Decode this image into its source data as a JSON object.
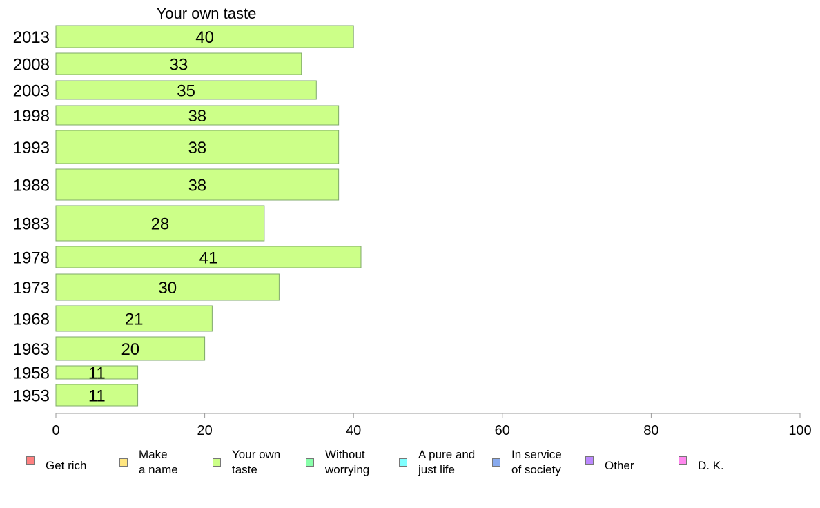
{
  "chart_data": {
    "type": "bar",
    "orientation": "horizontal",
    "title": "Your own taste",
    "categories": [
      "2013",
      "2008",
      "2003",
      "1998",
      "1993",
      "1988",
      "1983",
      "1978",
      "1973",
      "1968",
      "1963",
      "1958",
      "1953"
    ],
    "series": [
      {
        "name": "Your own taste",
        "values": [
          40,
          33,
          35,
          38,
          38,
          38,
          28,
          41,
          30,
          21,
          20,
          11,
          11
        ],
        "color": "#ccff88"
      }
    ],
    "xlim": [
      0,
      100
    ],
    "xticks": [
      "0",
      "20",
      "40",
      "60",
      "80",
      "100"
    ],
    "grid": false,
    "legend_position": "bottom",
    "bar_stroke": "#7fa86a",
    "axis_color": "#9a9a9a"
  },
  "legend": [
    {
      "label": "Get rich",
      "color": "#ff8080"
    },
    {
      "label": "Make\na name",
      "color": "#ffe680"
    },
    {
      "label": "Your own\ntaste",
      "color": "#ccff88"
    },
    {
      "label": "Without\nworrying",
      "color": "#88ffaa"
    },
    {
      "label": "A pure and\njust life",
      "color": "#80ffff"
    },
    {
      "label": "In service\nof society",
      "color": "#88aaee"
    },
    {
      "label": "Other",
      "color": "#bb88ff"
    },
    {
      "label": "D. K.",
      "color": "#ff88ee"
    }
  ]
}
